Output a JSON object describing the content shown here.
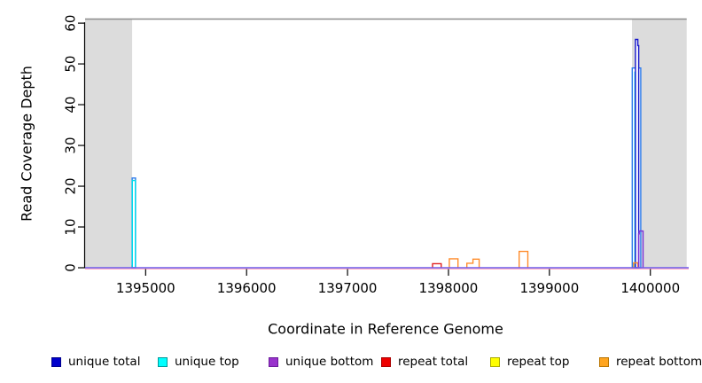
{
  "figure": {
    "background": "#ffffff",
    "plot_bg": "#ffffff"
  },
  "chart_data": {
    "type": "line",
    "subtype": "step-coverage-outline",
    "title": "",
    "xlabel": "Coordinate in Reference Genome",
    "ylabel": "Read Coverage Depth",
    "xlim": [
      1394400,
      1400380
    ],
    "ylim": [
      0,
      61
    ],
    "x_ticks": [
      1395000,
      1396000,
      1397000,
      1398000,
      1399000,
      1400000
    ],
    "y_ticks": [
      0,
      10,
      20,
      30,
      40,
      50,
      60
    ],
    "grid": false,
    "legend_position": "bottom",
    "colors": {
      "masked_region": "#DCDCDC",
      "top_border": "#8C8C8C",
      "axis": "#000000",
      "baseline_main": "#6F5BE8",
      "baseline_under": "#FFAFC8"
    },
    "masked_regions": [
      [
        1394400,
        1394866
      ],
      [
        1399818,
        1400360
      ]
    ],
    "baseline": {
      "value": 0,
      "series": "unique bottom"
    },
    "shapes": [
      {
        "series": "repeat total",
        "color": "#E02020",
        "fill": null,
        "steps": [
          [
            1394866,
            1394888,
            0.5
          ]
        ]
      },
      {
        "series": "unique total",
        "color": "#2E7CEB",
        "fill": "#FFFFFF",
        "steps": [
          [
            1394866,
            1394900,
            22
          ]
        ]
      },
      {
        "series": "unique top",
        "color": "#00DDEE",
        "fill": null,
        "steps": [
          [
            1394868,
            1394898,
            21.4
          ]
        ]
      },
      {
        "series": "repeat total",
        "color": "#E02020",
        "fill": null,
        "steps": [
          [
            1397842,
            1397928,
            1
          ]
        ]
      },
      {
        "series": "repeat bottom",
        "color": "#FF8C2B",
        "fill": null,
        "steps": [
          [
            1398008,
            1398094,
            2.2
          ]
        ]
      },
      {
        "series": "repeat bottom",
        "color": "#FF8C2B",
        "fill": null,
        "steps": [
          [
            1398182,
            1398243,
            1.1
          ],
          [
            1398243,
            1398304,
            2.1
          ]
        ]
      },
      {
        "series": "repeat bottom",
        "color": "#FF8C2B",
        "fill": null,
        "steps": [
          [
            1398700,
            1398786,
            4
          ]
        ]
      },
      {
        "series": "unique total",
        "color": "#2E7CEB",
        "fill": "#FFFFFF",
        "steps": [
          [
            1399821,
            1399905,
            49
          ]
        ]
      },
      {
        "series": "unique top",
        "color": "#00DDEE",
        "fill": "#FFFFFF",
        "steps": [
          [
            1399847,
            1399879,
            48
          ]
        ]
      },
      {
        "series": "unique total",
        "color": "#1414CC",
        "fill": "#FFFFFF",
        "steps": [
          [
            1399852,
            1399876,
            56
          ],
          [
            1399876,
            1399885,
            54.5
          ]
        ]
      },
      {
        "series": "repeat bottom",
        "color": "#FF8C2B",
        "fill": null,
        "steps": [
          [
            1399834,
            1399877,
            1.2
          ]
        ]
      },
      {
        "series": "unique bottom",
        "color": "#7A2FD6",
        "fill": null,
        "steps": [
          [
            1399884,
            1399890,
            8.3
          ],
          [
            1399890,
            1399928,
            9
          ]
        ]
      }
    ]
  },
  "legend": {
    "items": [
      {
        "label": "unique total",
        "fill": "#0000CC",
        "border": "#00008B"
      },
      {
        "label": "unique top",
        "fill": "#00FFFF",
        "border": "#009999"
      },
      {
        "label": "unique bottom",
        "fill": "#9933CC",
        "border": "#6A1B9A"
      },
      {
        "label": "repeat total",
        "fill": "#EE0000",
        "border": "#AA0000"
      },
      {
        "label": "repeat top",
        "fill": "#FFFF00",
        "border": "#AAAA00"
      },
      {
        "label": "repeat bottom",
        "fill": "#FFA520",
        "border": "#B87400"
      }
    ]
  }
}
